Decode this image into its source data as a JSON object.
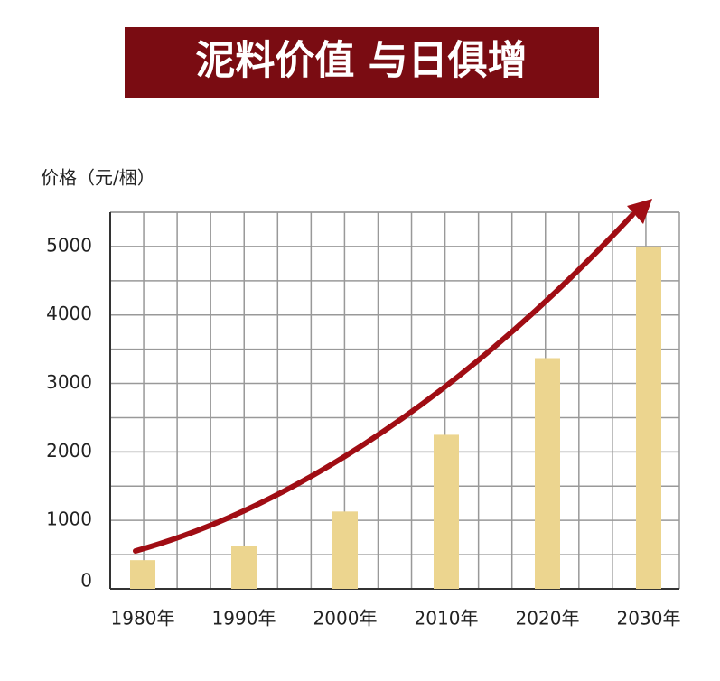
{
  "chart_data": {
    "type": "bar",
    "title": "泥料价值 与日俱增",
    "y_label": "价格（元/梱）",
    "categories": [
      "1980年",
      "1990年",
      "2000年",
      "2010年",
      "2020年",
      "2030年"
    ],
    "values": [
      420,
      620,
      1130,
      2250,
      3370,
      5000
    ],
    "color": "#ecd58f",
    "ylim": [
      0,
      5500
    ],
    "yticks": [
      0,
      1000,
      2000,
      3000,
      4000,
      5000
    ],
    "grid": true
  }
}
